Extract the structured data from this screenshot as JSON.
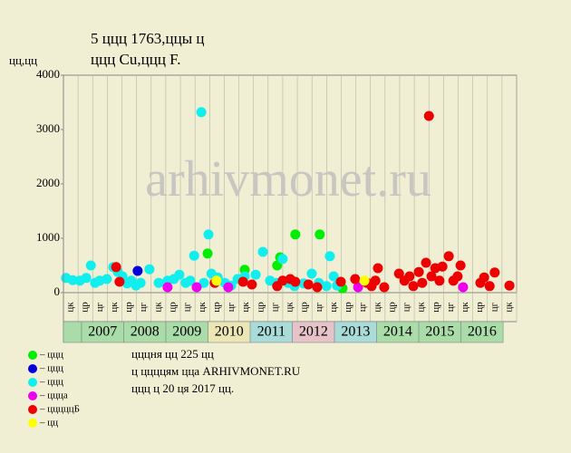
{
  "chart_data": {
    "type": "scatter",
    "title": "5 ццц 1763,ццы ц",
    "subtitle": "ццц Cu,ццц F.",
    "y_label": "цц,цц",
    "watermark": "arhivmonet.ru",
    "xlim": [
      2006.57,
      2017.32
    ],
    "ylim": [
      0,
      4000
    ],
    "yticks": [
      0,
      1000,
      2000,
      3000,
      4000
    ],
    "x_sublabels": [
      "цк",
      "цр",
      "цг",
      "цк",
      "цр",
      "цг",
      "цк",
      "цр",
      "цг",
      "цк",
      "цр",
      "цг",
      "цк",
      "цр",
      "цг",
      "цк",
      "цр",
      "цг",
      "цк",
      "цр",
      "цг",
      "цк",
      "цр",
      "цг",
      "цк",
      "цр",
      "цг",
      "цк",
      "цр",
      "цг",
      "цк"
    ],
    "years": [
      2007,
      2008,
      2009,
      2010,
      2011,
      2012,
      2013,
      2014,
      2015,
      2016
    ],
    "year_colors": [
      "#a9dca9",
      "#a9dca9",
      "#a9dca9",
      "#ece5b5",
      "#a9dcd8",
      "#e5c3c8",
      "#a9dcd8",
      "#a9dca9",
      "#a9dca9",
      "#a9dca9"
    ],
    "series": [
      {
        "name": "– ццц",
        "color": "#00ee00",
        "x": [
          2009.99,
          2010.87,
          2011.64,
          2011.71,
          2012.07,
          2012.65,
          2013.19
        ],
        "values": [
          720,
          420,
          500,
          650,
          1070,
          1070,
          80
        ]
      },
      {
        "name": "– ццц",
        "color": "#0000dd",
        "x": [
          2008.33
        ],
        "values": [
          400
        ]
      },
      {
        "name": "– ццц",
        "color": "#11eeee",
        "x": [
          2006.63,
          2006.79,
          2006.96,
          2007.11,
          2007.22,
          2007.32,
          2007.43,
          2007.6,
          2007.75,
          2007.86,
          2007.97,
          2008.08,
          2008.18,
          2008.29,
          2008.4,
          2008.61,
          2008.83,
          2009.04,
          2009.19,
          2009.32,
          2009.47,
          2009.58,
          2009.67,
          2009.84,
          2009.9,
          2010.01,
          2010.08,
          2010.23,
          2010.4,
          2010.55,
          2010.7,
          2010.87,
          2011.13,
          2011.3,
          2011.47,
          2011.62,
          2011.77,
          2011.9,
          2012.05,
          2012.27,
          2012.46,
          2012.63,
          2012.81,
          2012.89,
          2012.98,
          2013.06
        ],
        "values": [
          270,
          230,
          220,
          270,
          500,
          180,
          220,
          250,
          470,
          380,
          300,
          170,
          220,
          130,
          180,
          430,
          180,
          220,
          250,
          330,
          180,
          220,
          680,
          3320,
          180,
          1070,
          350,
          280,
          180,
          130,
          250,
          300,
          330,
          750,
          220,
          180,
          620,
          180,
          120,
          170,
          350,
          180,
          120,
          670,
          300,
          130
        ]
      },
      {
        "name": "– ццца",
        "color": "#ee00ee",
        "x": [
          2009.04,
          2009.73,
          2010.48,
          2013.56,
          2016.05
        ],
        "values": [
          100,
          100,
          100,
          100,
          100
        ]
      },
      {
        "name": "– цццццБ",
        "color": "#ee0000",
        "x": [
          2007.82,
          2007.9,
          2010.16,
          2010.83,
          2011.04,
          2011.64,
          2011.77,
          2011.95,
          2012.07,
          2012.38,
          2012.59,
          2013.15,
          2013.49,
          2013.77,
          2013.88,
          2013.97,
          2014.03,
          2014.18,
          2014.53,
          2014.66,
          2014.78,
          2014.87,
          2015.0,
          2015.08,
          2015.17,
          2015.24,
          2015.3,
          2015.39,
          2015.49,
          2015.56,
          2015.71,
          2015.82,
          2015.92,
          2015.99,
          2016.46,
          2016.55,
          2016.68,
          2016.8,
          2017.15
        ],
        "values": [
          470,
          200,
          180,
          200,
          150,
          120,
          220,
          250,
          200,
          150,
          100,
          200,
          250,
          180,
          120,
          220,
          450,
          100,
          350,
          220,
          300,
          120,
          380,
          180,
          550,
          3250,
          300,
          450,
          220,
          480,
          670,
          220,
          300,
          500,
          180,
          280,
          120,
          370,
          130
        ]
      },
      {
        "name": "– цц",
        "color": "#ffff00",
        "x": [
          2010.2,
          2013.71
        ],
        "values": [
          220,
          220
        ]
      }
    ],
    "notes": [
      "цццня цц 225 цц",
      "ц ццццям цца ARHIVMONET.RU",
      "ццц ц 20 ця 2017 цц."
    ]
  }
}
